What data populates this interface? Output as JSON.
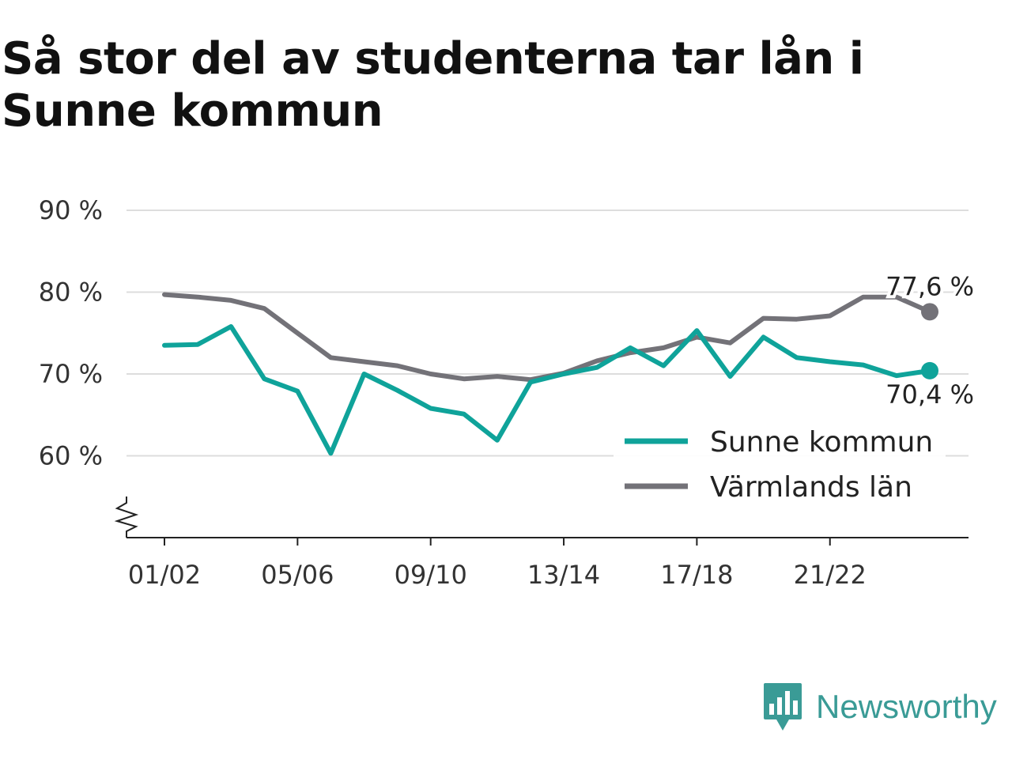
{
  "chart_data": {
    "type": "line",
    "title": "Så stor del av studenterna tar lån i Sunne kommun",
    "xlabel": "",
    "ylabel": "",
    "x": [
      "01/02",
      "02/03",
      "03/04",
      "04/05",
      "05/06",
      "06/07",
      "07/08",
      "08/09",
      "09/10",
      "10/11",
      "11/12",
      "12/13",
      "13/14",
      "14/15",
      "15/16",
      "16/17",
      "17/18",
      "18/19",
      "19/20",
      "20/21",
      "21/22",
      "22/23",
      "23/24",
      "24/25"
    ],
    "x_tick_labels": [
      "01/02",
      "05/06",
      "09/10",
      "13/14",
      "17/18",
      "21/22"
    ],
    "y_tick_values": [
      60,
      70,
      80,
      90
    ],
    "y_tick_labels": [
      "60 %",
      "70 %",
      "80 %",
      "90 %"
    ],
    "ylim": [
      50,
      90
    ],
    "y_axis_break": true,
    "grid": "horizontal",
    "legend_position": "right",
    "series": [
      {
        "name": "Sunne kommun",
        "color": "#0fa39a",
        "values": [
          73.5,
          73.6,
          75.8,
          69.4,
          67.9,
          60.3,
          70.0,
          68.0,
          65.8,
          65.1,
          61.9,
          69.0,
          70.0,
          70.8,
          73.2,
          71.0,
          75.3,
          69.7,
          74.5,
          72.0,
          71.5,
          71.1,
          69.8,
          70.4
        ],
        "end_label": "70,4 %"
      },
      {
        "name": "Värmlands län",
        "color": "#737278",
        "values": [
          79.7,
          79.4,
          79.0,
          78.0,
          75.0,
          72.0,
          71.5,
          71.0,
          70.0,
          69.4,
          69.7,
          69.3,
          70.1,
          71.6,
          72.6,
          73.2,
          74.5,
          73.8,
          76.8,
          76.7,
          77.1,
          79.4,
          79.4,
          77.6
        ],
        "end_label": "77,6 %"
      }
    ]
  },
  "brand": {
    "name": "Newsworthy",
    "color": "#3a9b96",
    "icon": "newsworthy-logo-icon"
  }
}
